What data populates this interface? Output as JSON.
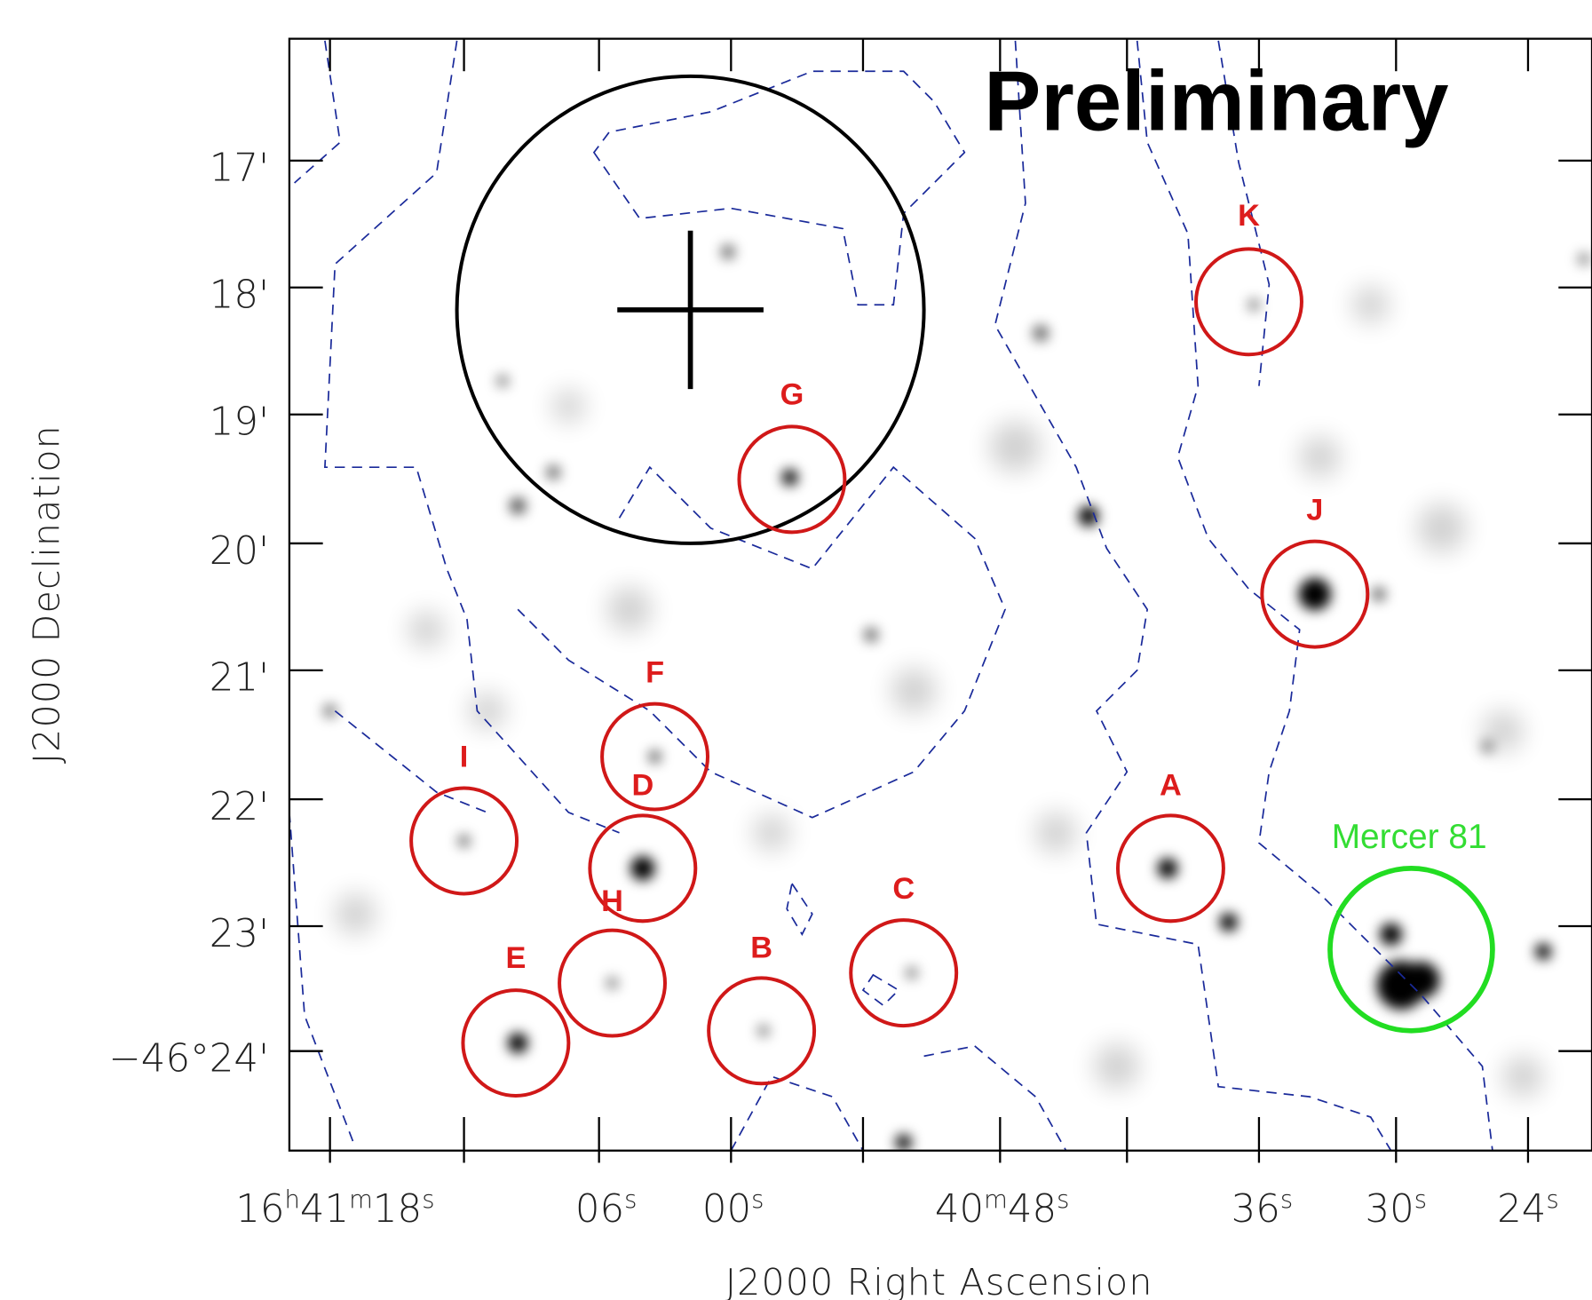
{
  "title": "Preliminary",
  "x_axis": {
    "label": "J2000 Right Ascension",
    "ticks": [
      [
        "16",
        "h",
        "41",
        "m",
        "18",
        "s"
      ],
      [
        "06",
        "s"
      ],
      [
        "00",
        "s"
      ],
      [
        "40",
        "m",
        "48",
        "s"
      ],
      [
        "36",
        "s"
      ],
      [
        "30",
        "s"
      ],
      [
        "24",
        "s"
      ]
    ]
  },
  "y_axis": {
    "label": "J2000 Declination",
    "ticks": [
      "17'",
      "18'",
      "19'",
      "20'",
      "21'",
      "22'",
      "23'",
      "−46°24'"
    ]
  },
  "sources": [
    {
      "label": "A"
    },
    {
      "label": "B"
    },
    {
      "label": "C"
    },
    {
      "label": "D"
    },
    {
      "label": "E"
    },
    {
      "label": "F"
    },
    {
      "label": "G"
    },
    {
      "label": "H"
    },
    {
      "label": "I"
    },
    {
      "label": "J"
    },
    {
      "label": "K"
    }
  ],
  "cluster": {
    "label": "Mercer 81"
  }
}
